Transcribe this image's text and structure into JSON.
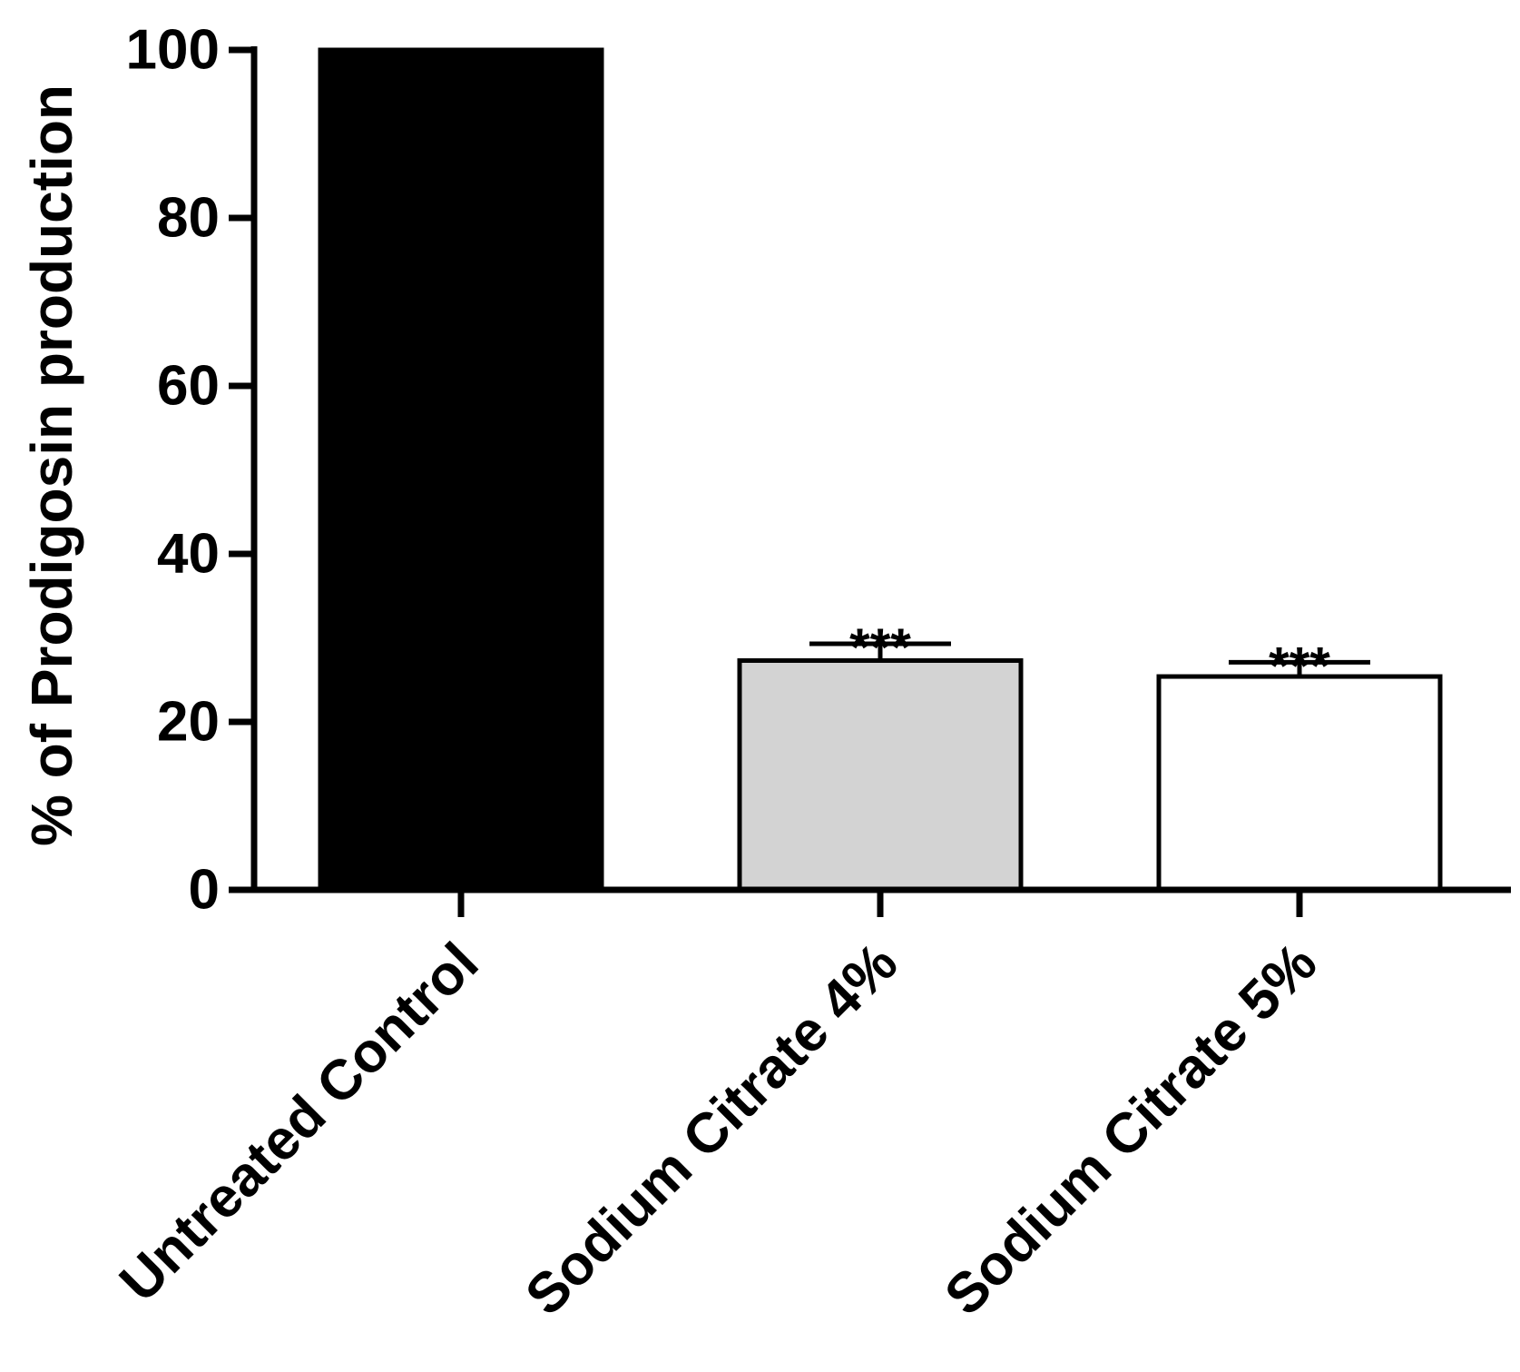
{
  "chart_data": {
    "type": "bar",
    "ylabel": "% of Prodigosin production",
    "xlabel": "",
    "ylim": [
      0,
      100
    ],
    "yticks": [
      0,
      20,
      40,
      60,
      80,
      100
    ],
    "grid": false,
    "categories": [
      "Untreated Control",
      "Sodium Citrate 4%",
      "Sodium Citrate 5%"
    ],
    "values": [
      100,
      27.3,
      25.4
    ],
    "errors": [
      0,
      2.0,
      1.7
    ],
    "annotations": [
      "",
      "***",
      "***"
    ],
    "colors": [
      "#000000",
      "#d3d3d3",
      "#ffffff"
    ]
  }
}
